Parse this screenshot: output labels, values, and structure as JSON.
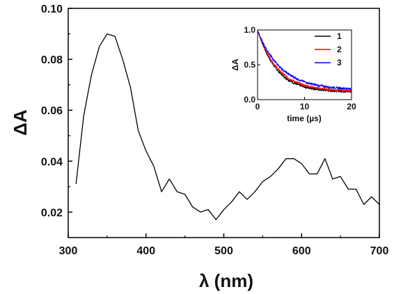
{
  "chart_data": [
    {
      "type": "line",
      "xlabel": "λ (nm)",
      "ylabel": "ΔA",
      "xlim": [
        300,
        700
      ],
      "ylim": [
        0.01,
        0.1
      ],
      "x_ticks": [
        "300",
        "400",
        "500",
        "600",
        "700"
      ],
      "y_ticks": [
        "0.02",
        "0.04",
        "0.06",
        "0.08",
        "0.10"
      ],
      "grid": false,
      "series": [
        {
          "color": "#000000",
          "x": [
            310,
            320,
            330,
            340,
            350,
            360,
            370,
            380,
            390,
            400,
            410,
            420,
            430,
            440,
            450,
            460,
            470,
            480,
            490,
            500,
            510,
            520,
            530,
            540,
            550,
            560,
            570,
            580,
            590,
            600,
            610,
            620,
            630,
            640,
            650,
            660,
            670,
            680,
            690,
            700
          ],
          "y": [
            0.031,
            0.058,
            0.074,
            0.085,
            0.09,
            0.089,
            0.08,
            0.069,
            0.052,
            0.044,
            0.038,
            0.028,
            0.033,
            0.028,
            0.027,
            0.022,
            0.02,
            0.021,
            0.017,
            0.021,
            0.024,
            0.028,
            0.025,
            0.028,
            0.032,
            0.034,
            0.037,
            0.041,
            0.041,
            0.039,
            0.035,
            0.035,
            0.041,
            0.033,
            0.034,
            0.029,
            0.029,
            0.023,
            0.026,
            0.023
          ]
        }
      ]
    },
    {
      "type": "line",
      "xlabel": "time (µs)",
      "ylabel": "ΔA",
      "xlim": [
        0,
        20
      ],
      "ylim": [
        0,
        1.0
      ],
      "x_ticks": [
        "0",
        "10",
        "20"
      ],
      "y_ticks": [
        "0.0",
        "0.5",
        "1.0"
      ],
      "grid": false,
      "legend": "top-right",
      "series": [
        {
          "name": "1",
          "color": "#000000",
          "amplitude": 0.9,
          "tau_us": 4.0,
          "baseline": 0.11,
          "noise": 0.015
        },
        {
          "name": "2",
          "color": "#ff0000",
          "amplitude": 0.88,
          "tau_us": 4.3,
          "baseline": 0.12,
          "noise": 0.015
        },
        {
          "name": "3",
          "color": "#0000ff",
          "amplitude": 0.85,
          "tau_us": 5.0,
          "baseline": 0.14,
          "noise": 0.015
        }
      ]
    }
  ]
}
